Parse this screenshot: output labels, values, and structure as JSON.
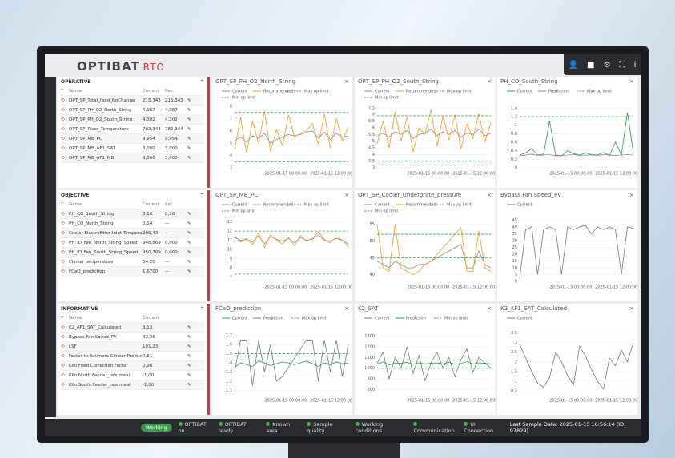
{
  "header": {
    "logo": "OPTIBAT",
    "product": "RTO"
  },
  "sidebar": [
    {
      "title": "OPERATIVE",
      "columns": [
        "T",
        "Name",
        "Current",
        "Rec."
      ],
      "rows": [
        [
          "OPT_SP_Total_feed_NoChange",
          "215,343",
          "215,343"
        ],
        [
          "OPT_SP_PH_O2_North_String",
          "4,987",
          "4,987"
        ],
        [
          "OPT_SP_PH_O2_South_String",
          "4,302",
          "4,302"
        ],
        [
          "OPT_SP_Riser_Temperature",
          "782,344",
          "782,344"
        ],
        [
          "OPT_SP_MB_PC",
          "9,954",
          "9,954"
        ],
        [
          "OPT_SP_MB_AF1_SAT",
          "3,000",
          "3,000"
        ],
        [
          "OPT_SP_MB_AF1_MB",
          "3,000",
          "3,000"
        ]
      ]
    },
    {
      "title": "OBJECTIVE",
      "columns": [
        "T",
        "Name",
        "Current",
        "Ref."
      ],
      "rows": [
        [
          "PH_CO_South_String",
          "0,16",
          "0,16"
        ],
        [
          "PH_CO_North_String",
          "0,14",
          "—"
        ],
        [
          "Cooler ElectroFilter Inlet Temperature",
          "295,43",
          "—"
        ],
        [
          "PH_ID_Fan_North_String_Speed",
          "946,869",
          "0,000"
        ],
        [
          "PH_ID_Fan_South_String_Speed",
          "950,709",
          "0,000"
        ],
        [
          "Clinker temperature",
          "64,20",
          "—"
        ],
        [
          "FCaO_prediction",
          "1,6700",
          "—"
        ]
      ]
    },
    {
      "title": "INFORMATIVE",
      "columns": [
        "T",
        "Name",
        "Current"
      ],
      "rows": [
        [
          "K2_AF1_SAT_Calculated",
          "3,13"
        ],
        [
          "Bypass Fan Speed_PV",
          "42,36"
        ],
        [
          "LSF",
          "101,23"
        ],
        [
          "Factor to Estimate Clinker Production",
          "0,61"
        ],
        [
          "Kiln Feed Correction Factor",
          "0,98"
        ],
        [
          "Kiln North Feeder_raw meal",
          "-1,00"
        ],
        [
          "Kiln South Feeder_raw meal",
          "-1,00"
        ]
      ]
    }
  ],
  "panels": [
    {
      "title": "OPT_SP_PH_O2_North_String",
      "ylim": [
        3,
        8.2
      ],
      "yticks": [
        3,
        4,
        5,
        6,
        7,
        8
      ],
      "xticks": [
        "2025-01-15 00:00:00",
        "2025-01-15 12:00:00"
      ],
      "series": [
        {
          "name": "Current",
          "color": "#888888",
          "values": [
            5.2,
            5.5,
            5.1,
            5.6,
            5.4,
            5.8,
            5.0,
            5.3,
            5.5,
            5.7,
            5.6,
            5.7,
            5.9,
            6.0,
            5.4,
            5.9,
            5.3,
            5.8,
            5.5,
            5.6
          ]
        },
        {
          "name": "Recommended",
          "color": "#f39a1e",
          "values": [
            4.5,
            7.1,
            4.2,
            6.8,
            5.0,
            7.6,
            4.3,
            6.1,
            4.8,
            7.3,
            5.5,
            5.8,
            6.0,
            6.6,
            4.9,
            7.4,
            4.6,
            7.0,
            5.2,
            6.3
          ]
        },
        {
          "name": "Max op limit",
          "color": "#2fa84f",
          "dashed": true,
          "value": 7.5
        },
        {
          "name": "Min op limit",
          "color": "#2fa84f",
          "dashed": true,
          "value": 3.5
        }
      ]
    },
    {
      "title": "OPT_SP_PH_O2_South_String",
      "ylim": [
        3,
        7.8
      ],
      "yticks": [
        3,
        3.5,
        4,
        4.5,
        5,
        5.5,
        6,
        6.5,
        7,
        7.5
      ],
      "xticks": [
        "2025-01-15 00:00:00",
        "2025-01-15 12:00:00"
      ],
      "series": [
        {
          "name": "Current",
          "color": "#888888",
          "values": [
            5.4,
            5.6,
            5.3,
            5.7,
            5.5,
            5.8,
            5.2,
            5.5,
            5.6,
            5.9,
            5.4,
            5.7,
            5.5,
            5.8,
            5.3,
            5.6,
            5.5,
            5.9,
            5.4,
            5.6
          ]
        },
        {
          "name": "Recommended",
          "color": "#f39a1e",
          "values": [
            4.8,
            6.5,
            4.5,
            7.2,
            5.0,
            6.8,
            4.2,
            6.0,
            5.5,
            7.4,
            4.6,
            6.9,
            5.1,
            7.0,
            4.4,
            6.3,
            5.2,
            7.1,
            4.9,
            6.4
          ]
        },
        {
          "name": "Max op limit",
          "color": "#2fa84f",
          "dashed": true,
          "value": 6.9
        },
        {
          "name": "Min op limit",
          "color": "#2fa84f",
          "dashed": true,
          "value": 3.5
        }
      ]
    },
    {
      "title": "PH_CO_South_String",
      "ylim": [
        0,
        1.5
      ],
      "yticks": [
        0,
        0.2,
        0.4,
        0.6,
        0.8,
        1,
        1.2,
        1.4
      ],
      "xticks": [
        "2025-01-15 00:00:00",
        "2025-01-15 12:00:00"
      ],
      "series": [
        {
          "name": "Current",
          "color": "#2a9a4a",
          "values": [
            0.3,
            0.35,
            0.45,
            0.3,
            0.32,
            1.1,
            0.3,
            0.28,
            0.4,
            0.33,
            0.3,
            0.35,
            0.31,
            0.3,
            0.36,
            0.29,
            0.6,
            0.3,
            1.3,
            0.35
          ]
        },
        {
          "name": "Prediction",
          "color": "#888888",
          "values": [
            0.28,
            0.3,
            0.32,
            0.29,
            0.3,
            0.31,
            0.28,
            0.29,
            0.3,
            0.31,
            0.29,
            0.3,
            0.3,
            0.29,
            0.31,
            0.3,
            0.29,
            0.3,
            0.31,
            0.3
          ]
        },
        {
          "name": "Max op limit",
          "color": "#2fa84f",
          "dashed": true,
          "value": 1.2
        }
      ]
    },
    {
      "title": "OPT_SP_MB_PC",
      "ylim": [
        6.5,
        13.5
      ],
      "yticks": [
        7,
        8,
        9,
        10,
        11,
        12,
        13
      ],
      "xticks": [
        "2025-01-15 00:00:00",
        "2025-01-15 12:00:00"
      ],
      "series": [
        {
          "name": "Current",
          "color": "#888888",
          "values": [
            11.3,
            11.0,
            11.1,
            10.8,
            11.5,
            10.6,
            11.4,
            11.1,
            10.9,
            11.2,
            10.7,
            11.3,
            11.0,
            11.1,
            11.6,
            11.0,
            10.9,
            11.2,
            11.0,
            10.6
          ]
        },
        {
          "name": "Recommended",
          "color": "#f39a1e",
          "values": [
            11.5,
            10.8,
            11.2,
            10.5,
            11.8,
            10.2,
            11.6,
            11.0,
            10.6,
            11.3,
            10.4,
            11.5,
            10.9,
            11.2,
            11.9,
            11.1,
            10.7,
            11.4,
            11.0,
            10.3
          ]
        },
        {
          "name": "Max op limit",
          "color": "#2fa84f",
          "dashed": true,
          "value": 12
        },
        {
          "name": "Min op limit",
          "color": "#2fa84f",
          "dashed": true,
          "value": 7.3
        }
      ]
    },
    {
      "title": "OPT_SP_Cooler_Undergrate_pressure",
      "ylim": [
        38,
        57
      ],
      "yticks": [
        40,
        45,
        50,
        55
      ],
      "xticks": [
        "2025-01-15 00:00:00",
        "2025-01-15 12:00:00"
      ],
      "series": [
        {
          "name": "Current",
          "color": "#888888",
          "values": [
            44,
            43,
            42,
            44,
            43,
            42,
            42,
            43,
            43,
            44,
            45,
            46,
            47,
            48,
            49,
            42,
            42,
            47,
            43,
            42
          ]
        },
        {
          "name": "Recommended",
          "color": "#f39a1e",
          "values": [
            55,
            42,
            41,
            55,
            42,
            41,
            40,
            41,
            43,
            44,
            46,
            48,
            50,
            52,
            54,
            41,
            41,
            53,
            42,
            41
          ]
        },
        {
          "name": "Max op limit",
          "color": "#2fa84f",
          "dashed": true,
          "value": 52
        },
        {
          "name": "Min op limit",
          "color": "#2fa84f",
          "dashed": true,
          "value": 45
        }
      ]
    },
    {
      "title": "Bypass Fan Speed_PV",
      "ylim": [
        0,
        47
      ],
      "yticks": [
        0,
        5,
        10,
        15,
        20,
        25,
        30,
        35,
        40,
        45
      ],
      "xticks": [
        "2025-01-15 00:00:00",
        "2025-01-15 12:00:00"
      ],
      "series": [
        {
          "name": "Current",
          "color": "#777777",
          "values": [
            2,
            38,
            40,
            5,
            38,
            40,
            38,
            5,
            40,
            38,
            40,
            41,
            35,
            40,
            38,
            40,
            38,
            5,
            40,
            39
          ]
        }
      ]
    },
    {
      "title": "FCaO_prediction",
      "ylim": [
        1.05,
        1.75
      ],
      "yticks": [
        1.1,
        1.2,
        1.3,
        1.4,
        1.5,
        1.6,
        1.7
      ],
      "xticks": [
        "2025-01-15 00:00:00",
        "2025-01-15 12:00:00"
      ],
      "series": [
        {
          "name": "Current",
          "color": "#2a9a4a",
          "values": [
            1.35,
            1.4,
            1.38,
            1.36,
            1.42,
            1.4,
            1.37,
            1.39,
            1.41,
            1.4,
            1.38,
            1.4,
            1.42,
            1.39,
            1.36,
            1.4,
            1.38,
            1.41,
            1.39,
            1.4
          ]
        },
        {
          "name": "Prediction",
          "color": "#777777",
          "values": [
            1.3,
            1.65,
            1.65,
            1.15,
            1.65,
            1.3,
            1.6,
            1.2,
            1.25,
            1.35,
            1.45,
            1.55,
            1.65,
            1.65,
            1.2,
            1.65,
            1.3,
            1.65,
            1.25,
            1.6
          ]
        },
        {
          "name": "Max op limit",
          "color": "#2fa84f",
          "dashed": true,
          "value": 1.5
        }
      ]
    },
    {
      "title": "K2_SAT",
      "ylim": [
        750,
        1350
      ],
      "yticks": [
        800,
        900,
        1000,
        1100,
        1200,
        1300
      ],
      "xticks": [
        "2025-01-15 00:00:00",
        "2025-01-15 12:00:00"
      ],
      "series": [
        {
          "name": "Current",
          "color": "#777777",
          "values": [
            1050,
            1150,
            900,
            1100,
            1000,
            1200,
            950,
            1120,
            880,
            1050,
            1150,
            1000,
            1100,
            920,
            1080,
            1180,
            960,
            1100,
            1050,
            1000
          ]
        },
        {
          "name": "Prediction",
          "color": "#2a9a4a",
          "values": [
            1040,
            1060,
            1030,
            1050,
            1045,
            1055,
            1035,
            1050,
            1040,
            1045,
            1050,
            1040,
            1055,
            1035,
            1045,
            1060,
            1040,
            1050,
            1045,
            1040
          ]
        },
        {
          "name": "Min op limit",
          "color": "#2fa84f",
          "dashed": true,
          "value": 1000
        }
      ]
    },
    {
      "title": "K2_AF1_SAT_Calculated",
      "ylim": [
        0.3,
        3.6
      ],
      "yticks": [
        0.5,
        1,
        1.5,
        2,
        2.5,
        3,
        3.5
      ],
      "xticks": [
        "2025-01-15 00:00:00",
        "2025-01-15 12:00:00"
      ],
      "series": [
        {
          "name": "Current",
          "color": "#777777",
          "values": [
            2.9,
            2.2,
            1.5,
            0.9,
            0.7,
            1.2,
            2.5,
            2.0,
            1.3,
            0.8,
            2.8,
            2.3,
            1.6,
            1.0,
            0.6,
            2.2,
            1.8,
            2.6,
            2.0,
            3.0
          ]
        }
      ]
    }
  ],
  "status_bar": {
    "state": "Working",
    "items": [
      "OPTIBAT on",
      "OPTIBAT ready",
      "Known area",
      "Sample quality",
      "Working conditions",
      "Communication",
      "UI Connection"
    ],
    "last_sample": "Last Sample Date: 2025-01-15 16:56:14 (ID: 97829)"
  }
}
